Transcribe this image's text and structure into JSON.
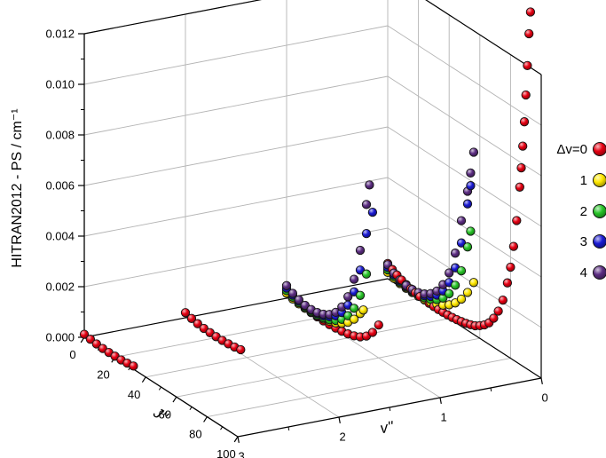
{
  "figure": {
    "background": "#ffffff"
  },
  "axes": {
    "z": {
      "label": "HITRAN2012 - PS / cm⁻¹",
      "tick_labels": [
        "0.000",
        "0.002",
        "0.004",
        "0.006",
        "0.008",
        "0.010",
        "0.012"
      ],
      "tick_values": [
        0,
        0.002,
        0.004,
        0.006,
        0.008,
        0.01,
        0.012
      ],
      "min": 0,
      "max": 0.012
    },
    "x": {
      "label": "J''",
      "tick_values": [
        0,
        20,
        40,
        60,
        80,
        100
      ],
      "minor_ticks": [
        10,
        30,
        50,
        70,
        90
      ],
      "min": 0,
      "max": 100
    },
    "y": {
      "label": "v''",
      "tick_values": [
        3,
        2,
        1,
        0
      ],
      "minor_ticks": [
        2.5,
        1.5,
        0.5
      ],
      "min": 0,
      "max": 3
    }
  },
  "legend": {
    "entries": [
      {
        "label": "Δv=0",
        "color": "#e60012"
      },
      {
        "label": "1",
        "color": "#ffe800"
      },
      {
        "label": "2",
        "color": "#27c427"
      },
      {
        "label": "3",
        "color": "#1a1ad2"
      },
      {
        "label": "4",
        "color": "#5c2d82"
      }
    ]
  },
  "chart_data": {
    "type": "scatter",
    "projection": "3d",
    "xlabel": "J''",
    "ylabel": "v''",
    "zlabel": "HITRAN2012 - PS / cm⁻¹",
    "xlim": [
      0,
      100
    ],
    "ylim": [
      0,
      3
    ],
    "zlim": [
      0,
      0.012
    ],
    "grid": true,
    "legend_position": "right",
    "series": [
      {
        "name": "dv0_v0",
        "dv": 0,
        "v": 0,
        "color": "#e60012",
        "points": [
          [
            0,
            0.0006
          ],
          [
            3,
            0.00048
          ],
          [
            6,
            0.00038
          ],
          [
            9,
            0.0003
          ],
          [
            12,
            0.00024
          ],
          [
            15,
            0.00019
          ],
          [
            18,
            0.00015
          ],
          [
            21,
            0.00012
          ],
          [
            24,
            0.0001
          ],
          [
            27,
            9e-05
          ],
          [
            30,
            8e-05
          ],
          [
            33,
            8e-05
          ],
          [
            36,
            9e-05
          ],
          [
            39,
            0.0001
          ],
          [
            42,
            0.00012
          ],
          [
            45,
            0.00015
          ],
          [
            48,
            0.00019
          ],
          [
            51,
            0.00024
          ],
          [
            54,
            0.0003
          ],
          [
            57,
            0.00038
          ],
          [
            60,
            0.0005
          ],
          [
            63,
            0.00065
          ],
          [
            66,
            0.00085
          ],
          [
            69,
            0.00115
          ],
          [
            72,
            0.00155
          ],
          [
            75,
            0.0021
          ],
          [
            78,
            0.0029
          ],
          [
            80,
            0.0036
          ],
          [
            82,
            0.0045
          ],
          [
            84,
            0.0056
          ],
          [
            86,
            0.007
          ],
          [
            87,
            0.0078
          ],
          [
            88,
            0.0087
          ],
          [
            89,
            0.0097
          ],
          [
            90,
            0.0108
          ],
          [
            91,
            0.012
          ],
          [
            92,
            0.0133
          ],
          [
            93,
            0.0142
          ]
        ]
      },
      {
        "name": "dv0_v1",
        "dv": 0,
        "v": 1,
        "color": "#e60012",
        "points": [
          [
            0,
            0.00035
          ],
          [
            4,
            0.00022
          ],
          [
            8,
            0.00014
          ],
          [
            12,
            9e-05
          ],
          [
            16,
            6e-05
          ],
          [
            20,
            5e-05
          ],
          [
            24,
            5e-05
          ],
          [
            28,
            6e-05
          ],
          [
            32,
            8e-05
          ],
          [
            36,
            0.00011
          ],
          [
            40,
            0.00016
          ],
          [
            44,
            0.00024
          ],
          [
            48,
            0.00036
          ],
          [
            52,
            0.00055
          ],
          [
            56,
            0.00085
          ],
          [
            60,
            0.0013
          ]
        ]
      },
      {
        "name": "dv0_v2",
        "dv": 0,
        "v": 2,
        "color": "#e60012",
        "points": [
          [
            0,
            0.0002
          ],
          [
            4,
            0.00013
          ],
          [
            8,
            8e-05
          ],
          [
            12,
            5e-05
          ],
          [
            16,
            4e-05
          ],
          [
            20,
            4e-05
          ],
          [
            24,
            5e-05
          ],
          [
            28,
            7e-05
          ],
          [
            32,
            0.0001
          ],
          [
            36,
            0.00015
          ]
        ]
      },
      {
        "name": "dv0_v3",
        "dv": 0,
        "v": 3,
        "color": "#e60012",
        "points": [
          [
            0,
            0.00012
          ],
          [
            4,
            8e-05
          ],
          [
            8,
            5e-05
          ],
          [
            12,
            3e-05
          ],
          [
            16,
            3e-05
          ],
          [
            20,
            4e-05
          ],
          [
            24,
            5e-05
          ],
          [
            28,
            8e-05
          ],
          [
            32,
            0.00012
          ]
        ]
      },
      {
        "name": "dv1_v0",
        "dv": 1,
        "v": 0,
        "color": "#ffe800",
        "points": [
          [
            0,
            0.00025
          ],
          [
            4,
            0.00017
          ],
          [
            8,
            0.00012
          ],
          [
            12,
            9e-05
          ],
          [
            16,
            8e-05
          ],
          [
            20,
            9e-05
          ],
          [
            24,
            0.00012
          ],
          [
            28,
            0.00017
          ],
          [
            32,
            0.00025
          ],
          [
            36,
            0.00037
          ],
          [
            40,
            0.00054
          ],
          [
            44,
            0.00077
          ],
          [
            48,
            0.00108
          ],
          [
            52,
            0.0015
          ],
          [
            56,
            0.00205
          ]
        ]
      },
      {
        "name": "dv1_v1",
        "dv": 1,
        "v": 1,
        "color": "#ffe800",
        "points": [
          [
            0,
            0.0002
          ],
          [
            4,
            0.00013
          ],
          [
            8,
            9e-05
          ],
          [
            12,
            7e-05
          ],
          [
            16,
            7e-05
          ],
          [
            20,
            9e-05
          ],
          [
            24,
            0.00013
          ],
          [
            28,
            0.00019
          ],
          [
            32,
            0.00028
          ],
          [
            36,
            0.00042
          ],
          [
            40,
            0.00062
          ],
          [
            44,
            0.0009
          ],
          [
            48,
            0.00128
          ],
          [
            50,
            0.0015
          ]
        ]
      },
      {
        "name": "dv2_v0",
        "dv": 2,
        "v": 0,
        "color": "#27c427",
        "points": [
          [
            0,
            0.00035
          ],
          [
            4,
            0.00024
          ],
          [
            8,
            0.00017
          ],
          [
            12,
            0.00013
          ],
          [
            16,
            0.00012
          ],
          [
            20,
            0.00014
          ],
          [
            24,
            0.00019
          ],
          [
            28,
            0.00028
          ],
          [
            32,
            0.00043
          ],
          [
            36,
            0.00065
          ],
          [
            40,
            0.00098
          ],
          [
            44,
            0.00147
          ],
          [
            48,
            0.0022
          ],
          [
            52,
            0.0033
          ],
          [
            54,
            0.004
          ]
        ]
      },
      {
        "name": "dv2_v1",
        "dv": 2,
        "v": 1,
        "color": "#27c427",
        "points": [
          [
            0,
            0.0003
          ],
          [
            4,
            0.0002
          ],
          [
            8,
            0.00014
          ],
          [
            12,
            0.00011
          ],
          [
            16,
            0.0001
          ],
          [
            20,
            0.00012
          ],
          [
            24,
            0.00017
          ],
          [
            28,
            0.00025
          ],
          [
            32,
            0.00038
          ],
          [
            36,
            0.00058
          ],
          [
            40,
            0.00088
          ],
          [
            44,
            0.00133
          ],
          [
            48,
            0.002
          ],
          [
            52,
            0.003
          ]
        ]
      },
      {
        "name": "dv3_v0",
        "dv": 3,
        "v": 0,
        "color": "#1a1ad2",
        "points": [
          [
            0,
            0.00045
          ],
          [
            4,
            0.00031
          ],
          [
            8,
            0.00022
          ],
          [
            12,
            0.00017
          ],
          [
            16,
            0.00016
          ],
          [
            20,
            0.00019
          ],
          [
            24,
            0.00027
          ],
          [
            28,
            0.0004
          ],
          [
            32,
            0.00061
          ],
          [
            36,
            0.00093
          ],
          [
            40,
            0.00142
          ],
          [
            44,
            0.00216
          ],
          [
            48,
            0.0033
          ],
          [
            52,
            0.005
          ],
          [
            54,
            0.0058
          ]
        ]
      },
      {
        "name": "dv3_v1",
        "dv": 3,
        "v": 1,
        "color": "#1a1ad2",
        "points": [
          [
            0,
            0.0004
          ],
          [
            4,
            0.00028
          ],
          [
            8,
            0.0002
          ],
          [
            12,
            0.00016
          ],
          [
            16,
            0.00015
          ],
          [
            20,
            0.00018
          ],
          [
            24,
            0.00025
          ],
          [
            28,
            0.00037
          ],
          [
            32,
            0.00056
          ],
          [
            36,
            0.00085
          ],
          [
            40,
            0.0013
          ],
          [
            44,
            0.00198
          ],
          [
            48,
            0.003
          ],
          [
            52,
            0.0046
          ],
          [
            56,
            0.0056
          ]
        ]
      },
      {
        "name": "dv4_v0",
        "dv": 4,
        "v": 0,
        "color": "#5c2d82",
        "points": [
          [
            0,
            0.00055
          ],
          [
            4,
            0.00038
          ],
          [
            8,
            0.00027
          ],
          [
            12,
            0.00021
          ],
          [
            16,
            0.0002
          ],
          [
            20,
            0.00024
          ],
          [
            24,
            0.00034
          ],
          [
            28,
            0.00051
          ],
          [
            32,
            0.00077
          ],
          [
            36,
            0.00118
          ],
          [
            40,
            0.0018
          ],
          [
            44,
            0.00274
          ],
          [
            48,
            0.00418
          ],
          [
            52,
            0.0055
          ],
          [
            54,
            0.0063
          ],
          [
            56,
            0.0072
          ]
        ]
      },
      {
        "name": "dv4_v1",
        "dv": 4,
        "v": 1,
        "color": "#5c2d82",
        "points": [
          [
            0,
            0.0005
          ],
          [
            4,
            0.00035
          ],
          [
            8,
            0.00025
          ],
          [
            12,
            0.00019
          ],
          [
            16,
            0.00018
          ],
          [
            20,
            0.00022
          ],
          [
            24,
            0.00031
          ],
          [
            28,
            0.00046
          ],
          [
            32,
            0.0007
          ],
          [
            36,
            0.00107
          ],
          [
            40,
            0.00163
          ],
          [
            44,
            0.00248
          ],
          [
            48,
            0.00378
          ],
          [
            52,
            0.00575
          ],
          [
            54,
            0.0066
          ]
        ]
      }
    ]
  }
}
